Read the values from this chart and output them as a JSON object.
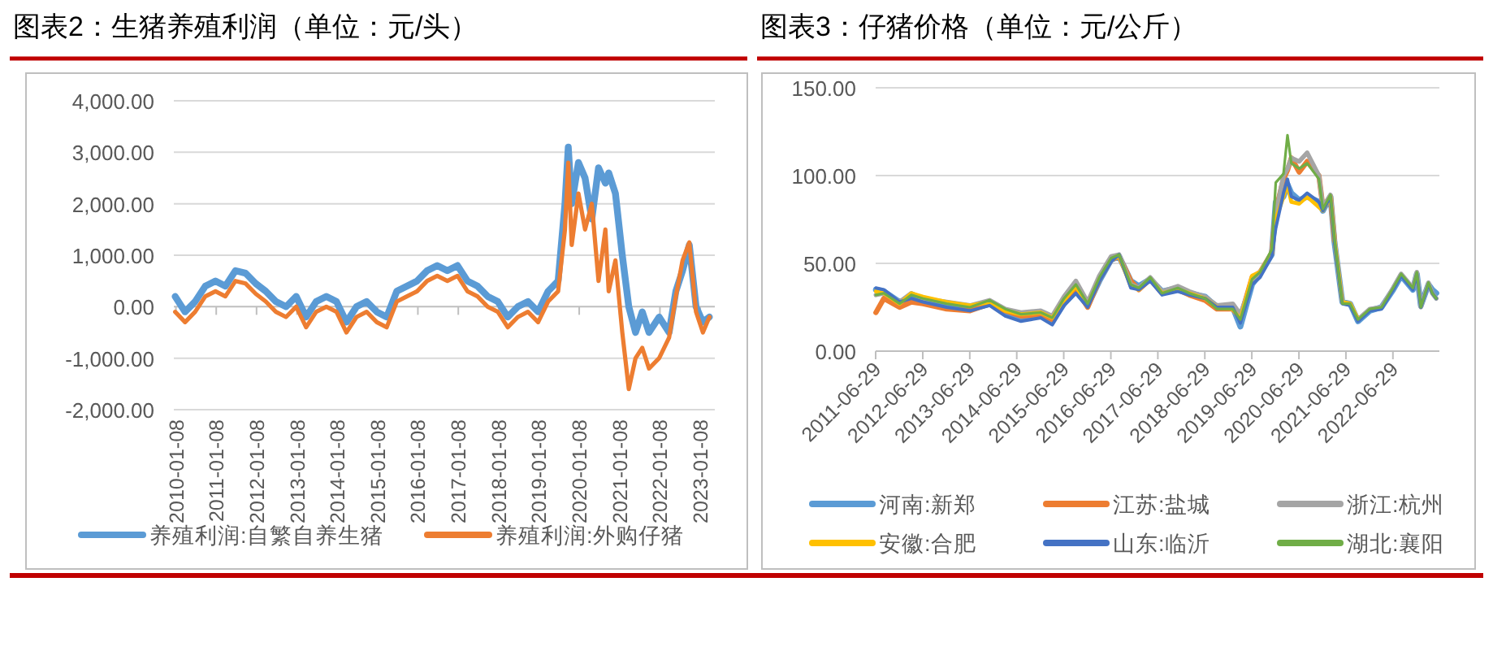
{
  "chart_data": [
    {
      "type": "line",
      "title": "图表2：生猪养殖利润（单位：元/头）",
      "grid": "y",
      "legend": "bottom",
      "line_style": "solid",
      "marker": "none",
      "x": [
        "2010-01",
        "2010-04",
        "2010-07",
        "2010-10",
        "2011-01",
        "2011-04",
        "2011-07",
        "2011-10",
        "2012-01",
        "2012-04",
        "2012-07",
        "2012-10",
        "2013-01",
        "2013-04",
        "2013-07",
        "2013-10",
        "2014-01",
        "2014-04",
        "2014-07",
        "2014-10",
        "2015-01",
        "2015-04",
        "2015-07",
        "2015-10",
        "2016-01",
        "2016-04",
        "2016-07",
        "2016-10",
        "2017-01",
        "2017-04",
        "2017-07",
        "2017-10",
        "2018-01",
        "2018-04",
        "2018-07",
        "2018-10",
        "2019-01",
        "2019-04",
        "2019-07",
        "2019-09",
        "2019-10",
        "2019-11",
        "2020-01",
        "2020-03",
        "2020-05",
        "2020-07",
        "2020-09",
        "2020-10",
        "2020-12",
        "2021-02",
        "2021-04",
        "2021-06",
        "2021-08",
        "2021-10",
        "2022-01",
        "2022-04",
        "2022-06",
        "2022-08",
        "2022-10",
        "2022-12",
        "2023-02",
        "2023-04"
      ],
      "xlim": [
        "2009-12-20",
        "2023-05-20"
      ],
      "xticks": [
        "2010-01-08",
        "2011-01-08",
        "2012-01-08",
        "2013-01-08",
        "2014-01-08",
        "2015-01-08",
        "2016-01-08",
        "2017-01-08",
        "2018-01-08",
        "2019-01-08",
        "2020-01-08",
        "2021-01-08",
        "2022-01-08",
        "2023-01-08"
      ],
      "ylim": [
        -2000,
        4000
      ],
      "yticks": [
        {
          "value": -2000,
          "label": "-2,000.00"
        },
        {
          "value": -1000,
          "label": "-1,000.00"
        },
        {
          "value": 0,
          "label": "0.00"
        },
        {
          "value": 1000,
          "label": "1,000.00"
        },
        {
          "value": 2000,
          "label": "2,000.00"
        },
        {
          "value": 3000,
          "label": "3,000.00"
        },
        {
          "value": 4000,
          "label": "4,000.00"
        }
      ],
      "series": [
        {
          "name": "养殖利润:自繁自养生猪",
          "color": "#5b9bd5",
          "values": [
            200,
            -100,
            100,
            400,
            500,
            400,
            700,
            650,
            450,
            300,
            100,
            0,
            200,
            -200,
            100,
            200,
            100,
            -300,
            0,
            100,
            -100,
            -200,
            300,
            400,
            500,
            700,
            800,
            700,
            800,
            500,
            400,
            200,
            100,
            -200,
            0,
            100,
            -100,
            300,
            500,
            2000,
            3100,
            2000,
            2800,
            2500,
            1700,
            2700,
            2400,
            2600,
            2200,
            1000,
            0,
            -500,
            -100,
            -500,
            -200,
            -500,
            300,
            700,
            1200,
            0,
            -300,
            -200
          ]
        },
        {
          "name": "养殖利润:外购仔猪",
          "color": "#ed7d31",
          "values": [
            -100,
            -300,
            -100,
            200,
            300,
            200,
            500,
            450,
            250,
            100,
            -100,
            -200,
            0,
            -400,
            -100,
            0,
            -100,
            -500,
            -200,
            -100,
            -300,
            -400,
            100,
            200,
            300,
            500,
            600,
            500,
            600,
            300,
            200,
            0,
            -100,
            -400,
            -200,
            -100,
            -300,
            100,
            300,
            1500,
            2800,
            1200,
            2200,
            1500,
            2000,
            500,
            1500,
            300,
            900,
            -500,
            -1600,
            -1000,
            -800,
            -1200,
            -1000,
            -600,
            200,
            900,
            1250,
            -100,
            -500,
            -200
          ]
        }
      ]
    },
    {
      "type": "line",
      "title": "图表3：仔猪价格（单位：元/公斤）",
      "grid": "y",
      "legend": "bottom",
      "line_style": "solid",
      "marker": "none",
      "x": [
        "2011-07",
        "2011-09",
        "2012-01",
        "2012-04",
        "2012-07",
        "2013-01",
        "2013-07",
        "2013-12",
        "2014-04",
        "2014-08",
        "2015-01",
        "2015-04",
        "2015-07",
        "2015-10",
        "2016-01",
        "2016-04",
        "2016-07",
        "2016-09",
        "2016-12",
        "2017-02",
        "2017-05",
        "2017-08",
        "2017-12",
        "2018-03",
        "2018-07",
        "2018-10",
        "2019-02",
        "2019-04",
        "2019-07",
        "2019-09",
        "2019-12",
        "2020-01",
        "2020-03",
        "2020-04",
        "2020-05",
        "2020-07",
        "2020-09",
        "2020-12",
        "2021-01",
        "2021-03",
        "2021-04",
        "2021-06",
        "2021-08",
        "2021-10",
        "2022-01",
        "2022-04",
        "2022-07",
        "2022-09",
        "2022-12",
        "2023-01",
        "2023-02",
        "2023-04",
        "2023-05",
        "2023-06"
      ],
      "xlim": [
        "2011-06-29",
        "2023-06-25"
      ],
      "xticks": [
        "2011-06-29",
        "2012-06-29",
        "2013-06-29",
        "2014-06-29",
        "2015-06-29",
        "2016-06-29",
        "2017-06-29",
        "2018-06-29",
        "2019-06-29",
        "2020-06-29",
        "2021-06-29",
        "2022-06-29"
      ],
      "ylim": [
        0,
        150
      ],
      "yticks": [
        {
          "value": 0,
          "label": "0.00"
        },
        {
          "value": 50,
          "label": "50.00"
        },
        {
          "value": 100,
          "label": "100.00"
        },
        {
          "value": 150,
          "label": "150.00"
        }
      ],
      "series": [
        {
          "name": "河南:新郑",
          "color": "#5b9bd5",
          "values": [
            35,
            34,
            28,
            30,
            29,
            26,
            24,
            27,
            22,
            19,
            21,
            17,
            27,
            34,
            26,
            40,
            52,
            54,
            40,
            37,
            41,
            34,
            36,
            33,
            31,
            25,
            25,
            14,
            38,
            44,
            55,
            85,
            88,
            95,
            90,
            86,
            88,
            85,
            80,
            88,
            62,
            28,
            27,
            17,
            23,
            25,
            35,
            43,
            35,
            44,
            26,
            38,
            35,
            33
          ]
        },
        {
          "name": "江苏:盐城",
          "color": "#ed7d31",
          "values": [
            22,
            30,
            25,
            28,
            27,
            24,
            23,
            27,
            23,
            20,
            21,
            18,
            28,
            36,
            25,
            41,
            52,
            54,
            40,
            35,
            41,
            33,
            35,
            32,
            29,
            24,
            24,
            19,
            42,
            45,
            56,
            80,
            98,
            103,
            110,
            102,
            108,
            100,
            82,
            88,
            63,
            null,
            null,
            null,
            null,
            null,
            null,
            null,
            null,
            null,
            null,
            null,
            null,
            null
          ]
        },
        {
          "name": "浙江:杭州",
          "color": "#a5a5a5",
          "values": [
            32,
            33,
            28,
            33,
            30,
            28,
            26,
            29,
            24,
            22,
            23,
            20,
            31,
            40,
            28,
            43,
            54,
            55,
            38,
            36,
            42,
            34,
            37,
            34,
            31,
            26,
            27,
            21,
            40,
            45,
            56,
            78,
            100,
            104,
            110,
            108,
            113,
            100,
            82,
            89,
            64,
            28,
            27,
            18,
            24,
            25,
            36,
            44,
            36,
            45,
            25,
            39,
            33,
            30
          ]
        },
        {
          "name": "安徽:合肥",
          "color": "#ffc000",
          "values": [
            34,
            33,
            27,
            33,
            31,
            28,
            26,
            28,
            23,
            21,
            22,
            19,
            29,
            37,
            26,
            41,
            52,
            54,
            37,
            35,
            41,
            33,
            35,
            33,
            30,
            25,
            24,
            18,
            43,
            45,
            56,
            75,
            88,
            95,
            85,
            84,
            88,
            82,
            80,
            88,
            63,
            28,
            27,
            18,
            null,
            null,
            null,
            null,
            null,
            null,
            null,
            null,
            null,
            null
          ]
        },
        {
          "name": "山东:临沂",
          "color": "#4472c4",
          "values": [
            36,
            35,
            28,
            30,
            28,
            25,
            23,
            26,
            20,
            17,
            19,
            15,
            26,
            33,
            25,
            40,
            51,
            55,
            36,
            35,
            40,
            32,
            34,
            32,
            30,
            25,
            25,
            16,
            38,
            42,
            54,
            70,
            90,
            98,
            88,
            86,
            90,
            85,
            80,
            88,
            62,
            27,
            26,
            17,
            23,
            24,
            35,
            43,
            35,
            44,
            25,
            38,
            33,
            30
          ]
        },
        {
          "name": "湖北:襄阳",
          "color": "#70ad47",
          "values": [
            32,
            33,
            27,
            32,
            30,
            27,
            25,
            29,
            24,
            21,
            22,
            19,
            30,
            38,
            27,
            42,
            53,
            55,
            38,
            36,
            42,
            33,
            36,
            33,
            30,
            24,
            24,
            18,
            41,
            45,
            58,
            96,
            101,
            123,
            107,
            104,
            107,
            98,
            81,
            89,
            64,
            27,
            27,
            18,
            24,
            25,
            36,
            44,
            36,
            45,
            25,
            39,
            33,
            30
          ]
        }
      ]
    }
  ]
}
